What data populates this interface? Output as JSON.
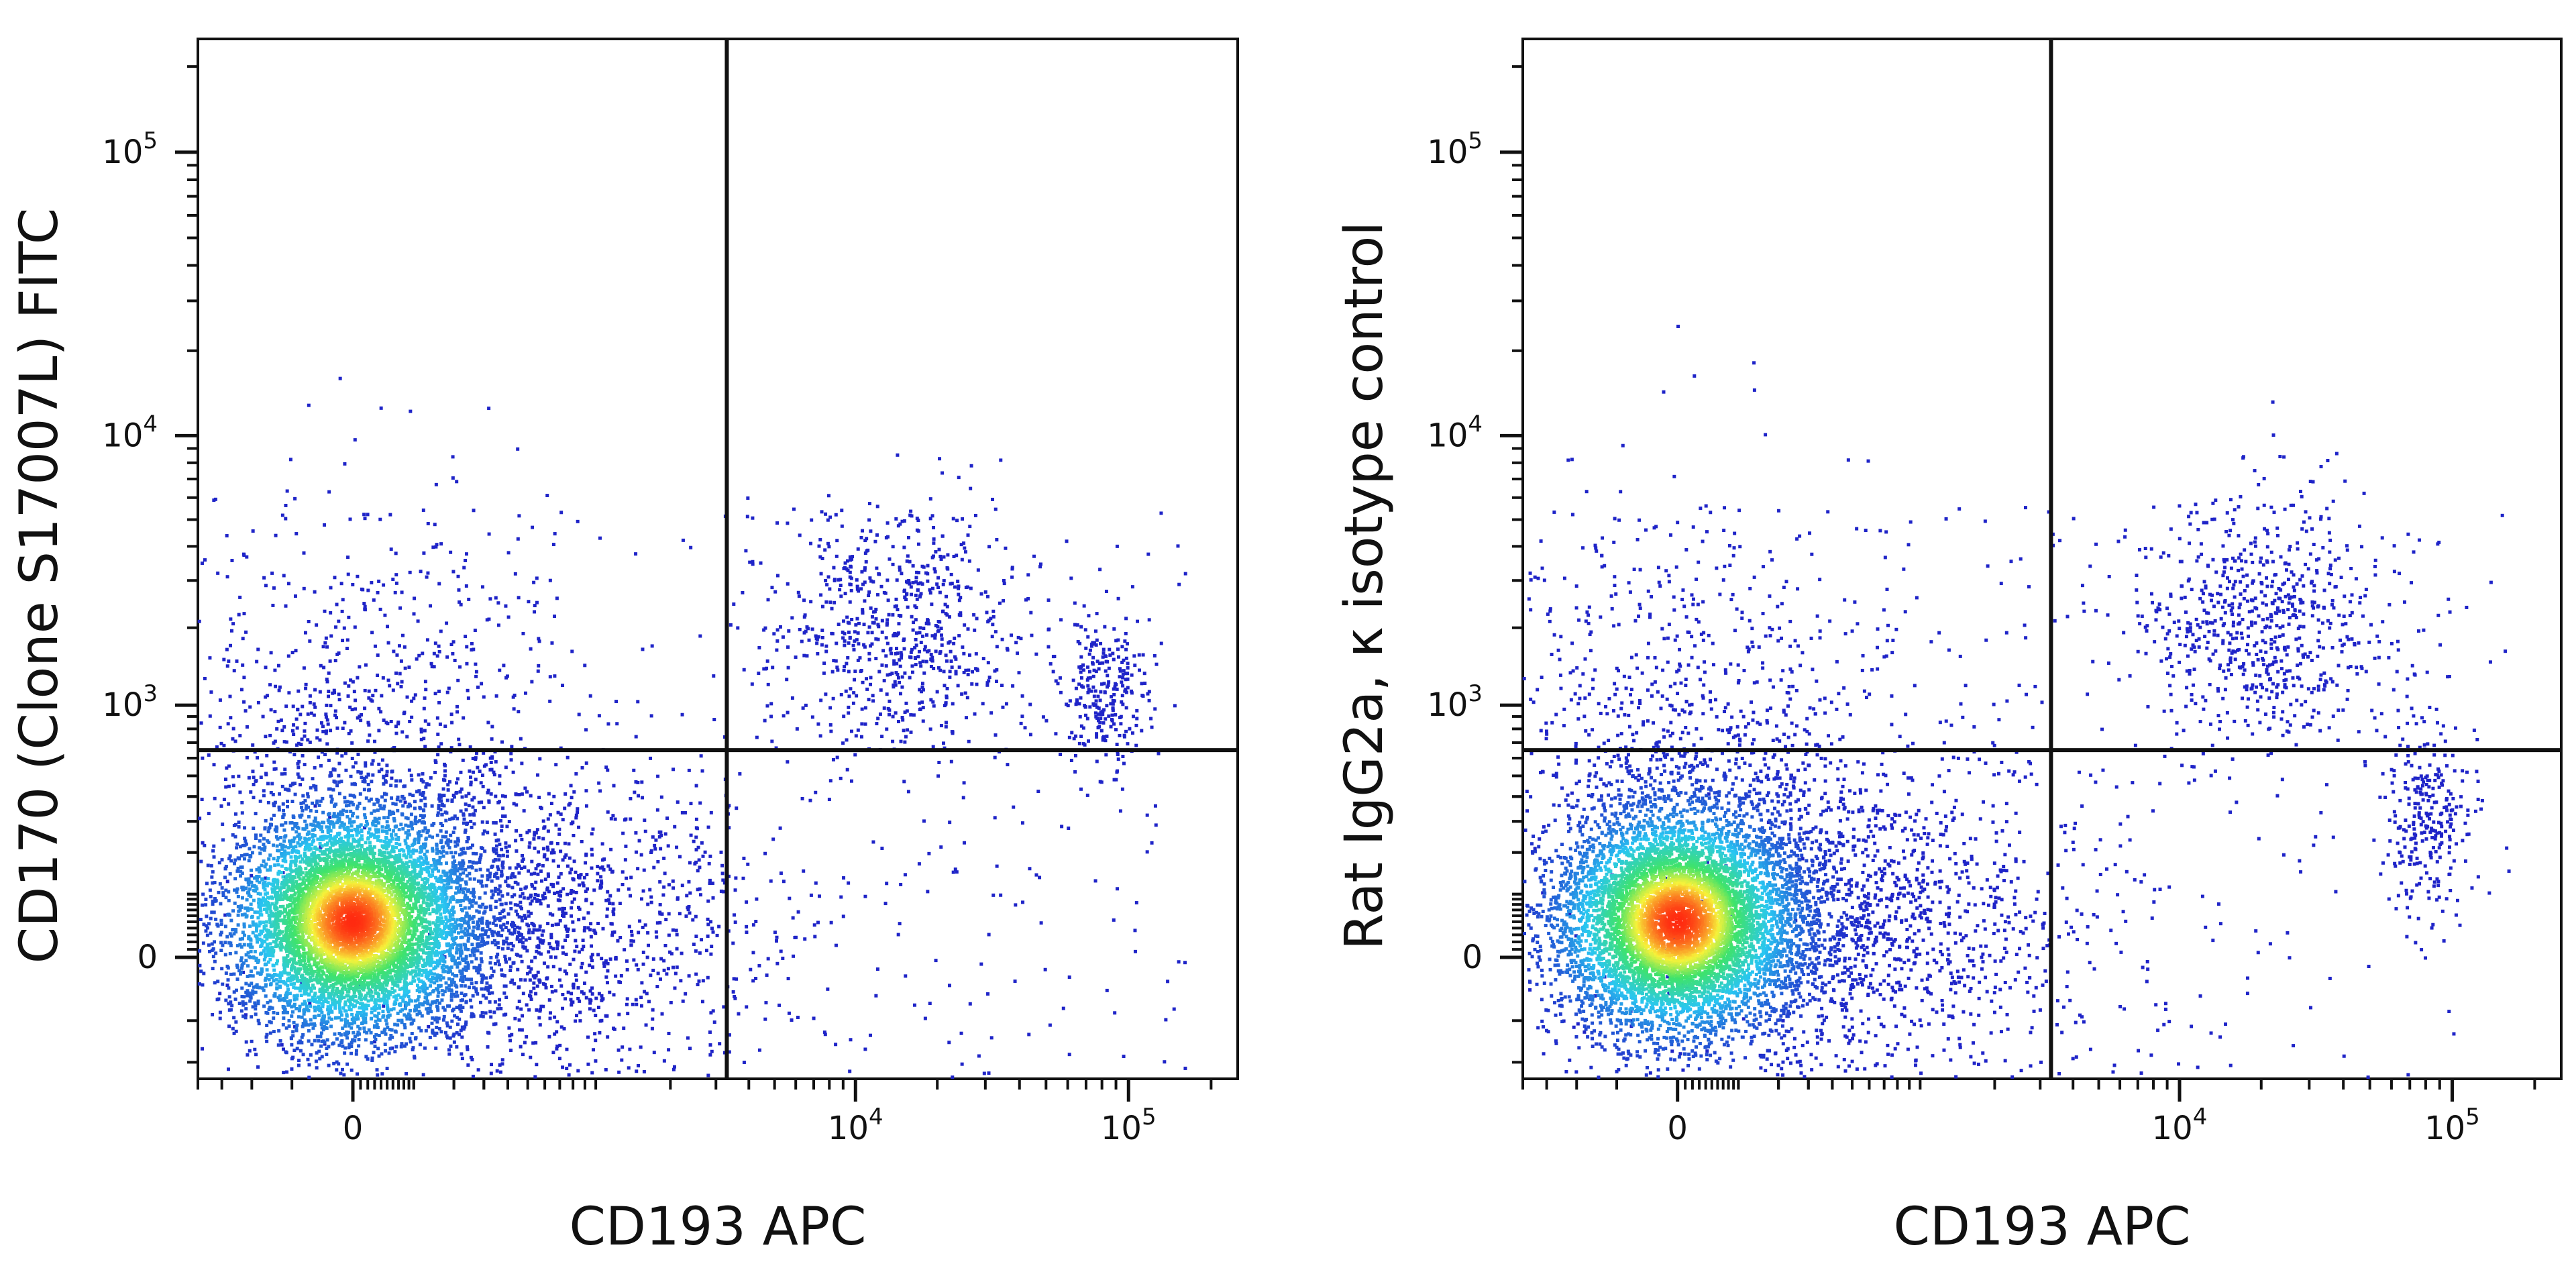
{
  "chart_data": [
    {
      "type": "scatter",
      "subtype": "flow-cytometry-density-dot-plot",
      "xlabel": "CD193 APC",
      "ylabel": "CD170 (Clone S17007L) FITC",
      "x_scale": "biexponential",
      "y_scale": "biexponential",
      "xlim": [
        -400,
        250000
      ],
      "ylim": [
        -250,
        250000
      ],
      "x_ticks": [
        {
          "value": 0,
          "label": "0"
        },
        {
          "value": 10000,
          "label": "10",
          "exp": "4"
        },
        {
          "value": 100000,
          "label": "10",
          "exp": "5"
        }
      ],
      "y_ticks": [
        {
          "value": 0,
          "label": "0"
        },
        {
          "value": 1000,
          "label": "10",
          "exp": "3"
        },
        {
          "value": 10000,
          "label": "10",
          "exp": "4"
        },
        {
          "value": 100000,
          "label": "10",
          "exp": "5"
        }
      ],
      "quadrant_gate": {
        "x": 3300,
        "y": 650
      },
      "populations": [
        {
          "x_center": 0,
          "y_center": 50,
          "share": "majority",
          "density": "very high"
        },
        {
          "x_center": 15000,
          "y_center": 2000,
          "share": "small",
          "density": "low"
        },
        {
          "x_center": 80000,
          "y_center": 1100,
          "share": "small",
          "density": "medium"
        }
      ],
      "grid": false,
      "legend": "none"
    },
    {
      "type": "scatter",
      "subtype": "flow-cytometry-density-dot-plot",
      "xlabel": "CD193 APC",
      "ylabel": "Rat IgG2a, κ isotype control",
      "x_scale": "biexponential",
      "y_scale": "biexponential",
      "xlim": [
        -400,
        250000
      ],
      "ylim": [
        -250,
        250000
      ],
      "x_ticks": [
        {
          "value": 0,
          "label": "0"
        },
        {
          "value": 10000,
          "label": "10",
          "exp": "4"
        },
        {
          "value": 100000,
          "label": "10",
          "exp": "5"
        }
      ],
      "y_ticks": [
        {
          "value": 0,
          "label": "0"
        },
        {
          "value": 1000,
          "label": "10",
          "exp": "3"
        },
        {
          "value": 10000,
          "label": "10",
          "exp": "4"
        },
        {
          "value": 100000,
          "label": "10",
          "exp": "5"
        }
      ],
      "quadrant_gate": {
        "x": 3300,
        "y": 650
      },
      "populations": [
        {
          "x_center": 0,
          "y_center": 50,
          "share": "majority",
          "density": "very high"
        },
        {
          "x_center": 20000,
          "y_center": 2000,
          "share": "small",
          "density": "low"
        },
        {
          "x_center": 80000,
          "y_center": 300,
          "share": "small",
          "density": "medium"
        }
      ],
      "grid": false,
      "legend": "none"
    }
  ],
  "colors": {
    "density_low": "#1f24c8",
    "density_mid": "#29c6f2",
    "density_high": "#3fe36a",
    "density_peak": "#ff2a10",
    "axis": "#111111"
  }
}
